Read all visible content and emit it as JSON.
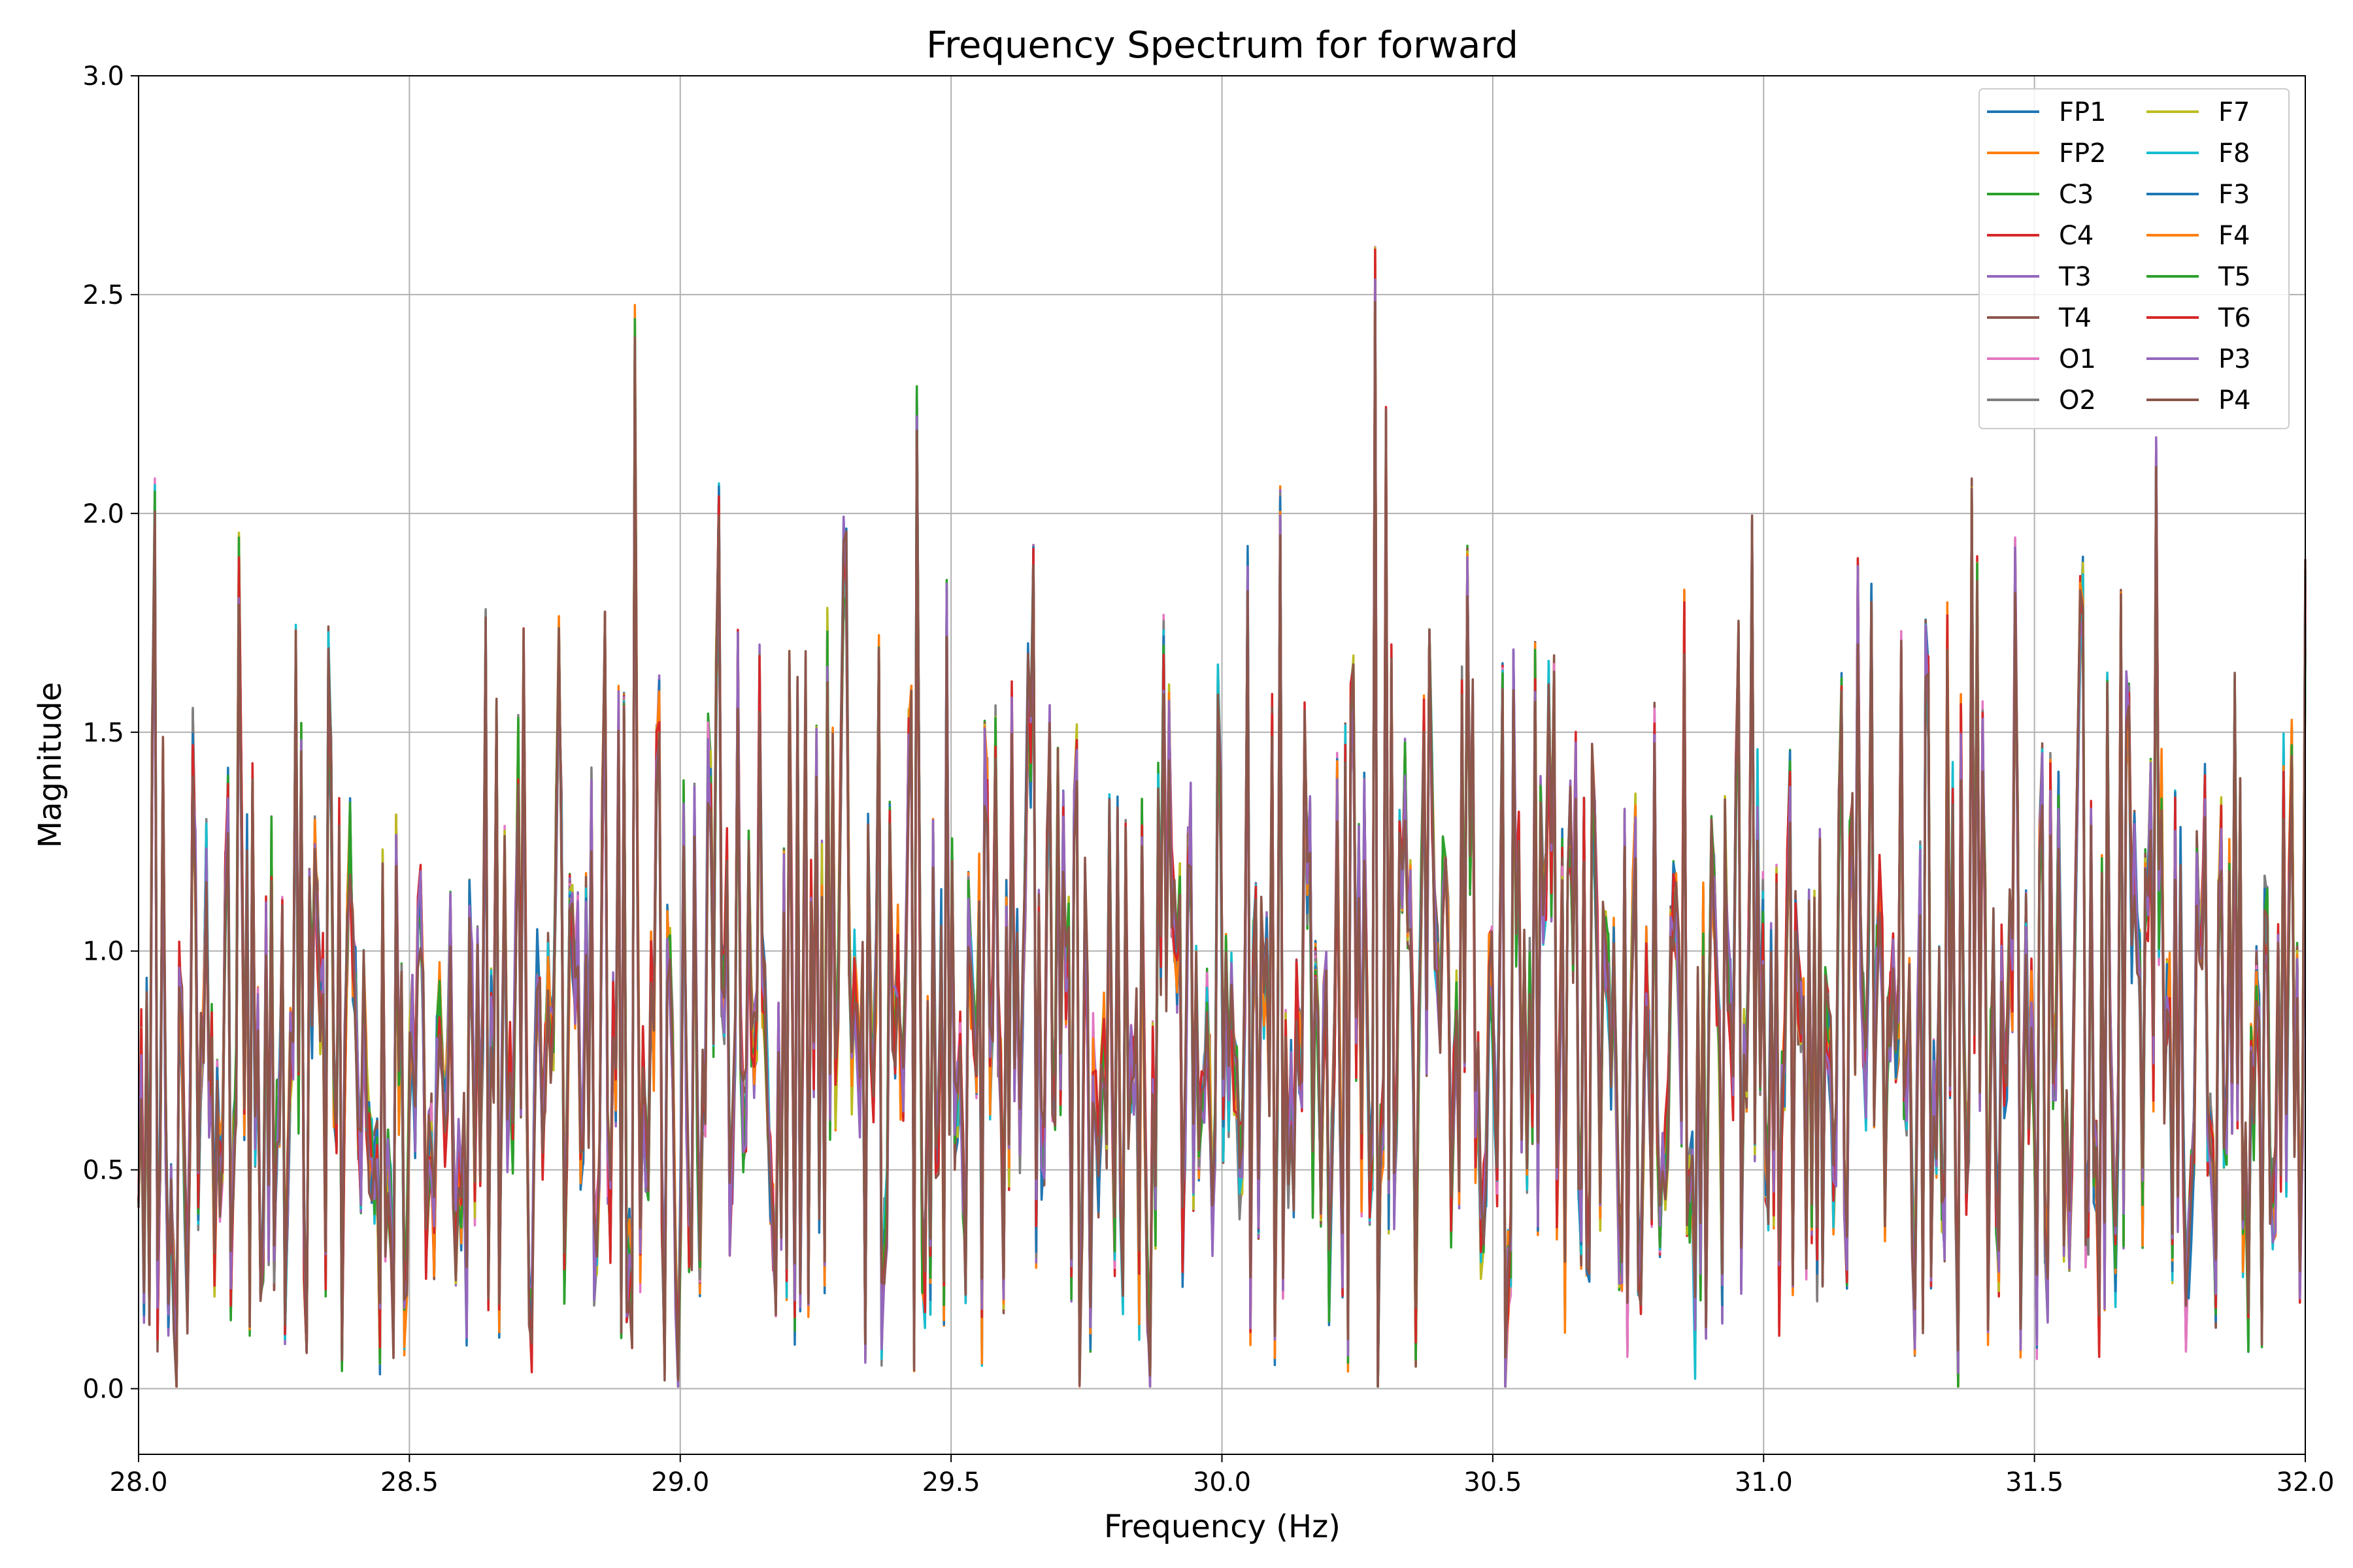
{
  "chart_data": {
    "type": "line",
    "title": "Frequency Spectrum for forward",
    "xlabel": "Frequency (Hz)",
    "ylabel": "Magnitude",
    "xlim": [
      28.0,
      32.0
    ],
    "ylim": [
      -0.15,
      3.0
    ],
    "xticks": [
      28.0,
      28.5,
      29.0,
      29.5,
      30.0,
      30.5,
      31.0,
      31.5,
      32.0
    ],
    "xtick_labels": [
      "28.0",
      "28.5",
      "29.0",
      "29.5",
      "30.0",
      "30.5",
      "31.0",
      "31.5",
      "32.0"
    ],
    "yticks": [
      0.0,
      0.5,
      1.0,
      1.5,
      2.0,
      2.5,
      3.0
    ],
    "ytick_labels": [
      "0.0",
      "0.5",
      "1.0",
      "1.5",
      "2.0",
      "2.5",
      "3.0"
    ],
    "grid": true,
    "legend_position": "top-right",
    "legend_columns": 2,
    "n_points": 800,
    "series": [
      {
        "name": "FP1",
        "color": "#1f77b4",
        "seed": 11
      },
      {
        "name": "FP2",
        "color": "#ff7f0e",
        "seed": 23
      },
      {
        "name": "C3",
        "color": "#2ca02c",
        "seed": 37
      },
      {
        "name": "C4",
        "color": "#d62728",
        "seed": 41
      },
      {
        "name": "T3",
        "color": "#9467bd",
        "seed": 53
      },
      {
        "name": "T4",
        "color": "#8c564b",
        "seed": 67
      },
      {
        "name": "O1",
        "color": "#e377c2",
        "seed": 71
      },
      {
        "name": "O2",
        "color": "#7f7f7f",
        "seed": 83
      },
      {
        "name": "F7",
        "color": "#bcbd22",
        "seed": 97
      },
      {
        "name": "F8",
        "color": "#17becf",
        "seed": 101
      },
      {
        "name": "F3",
        "color": "#1f77b4",
        "seed": 113
      },
      {
        "name": "F4",
        "color": "#ff7f0e",
        "seed": 127
      },
      {
        "name": "T5",
        "color": "#2ca02c",
        "seed": 131
      },
      {
        "name": "T6",
        "color": "#d62728",
        "seed": 149
      },
      {
        "name": "P3",
        "color": "#9467bd",
        "seed": 157
      },
      {
        "name": "P4",
        "color": "#8c564b",
        "seed": 163
      }
    ]
  }
}
